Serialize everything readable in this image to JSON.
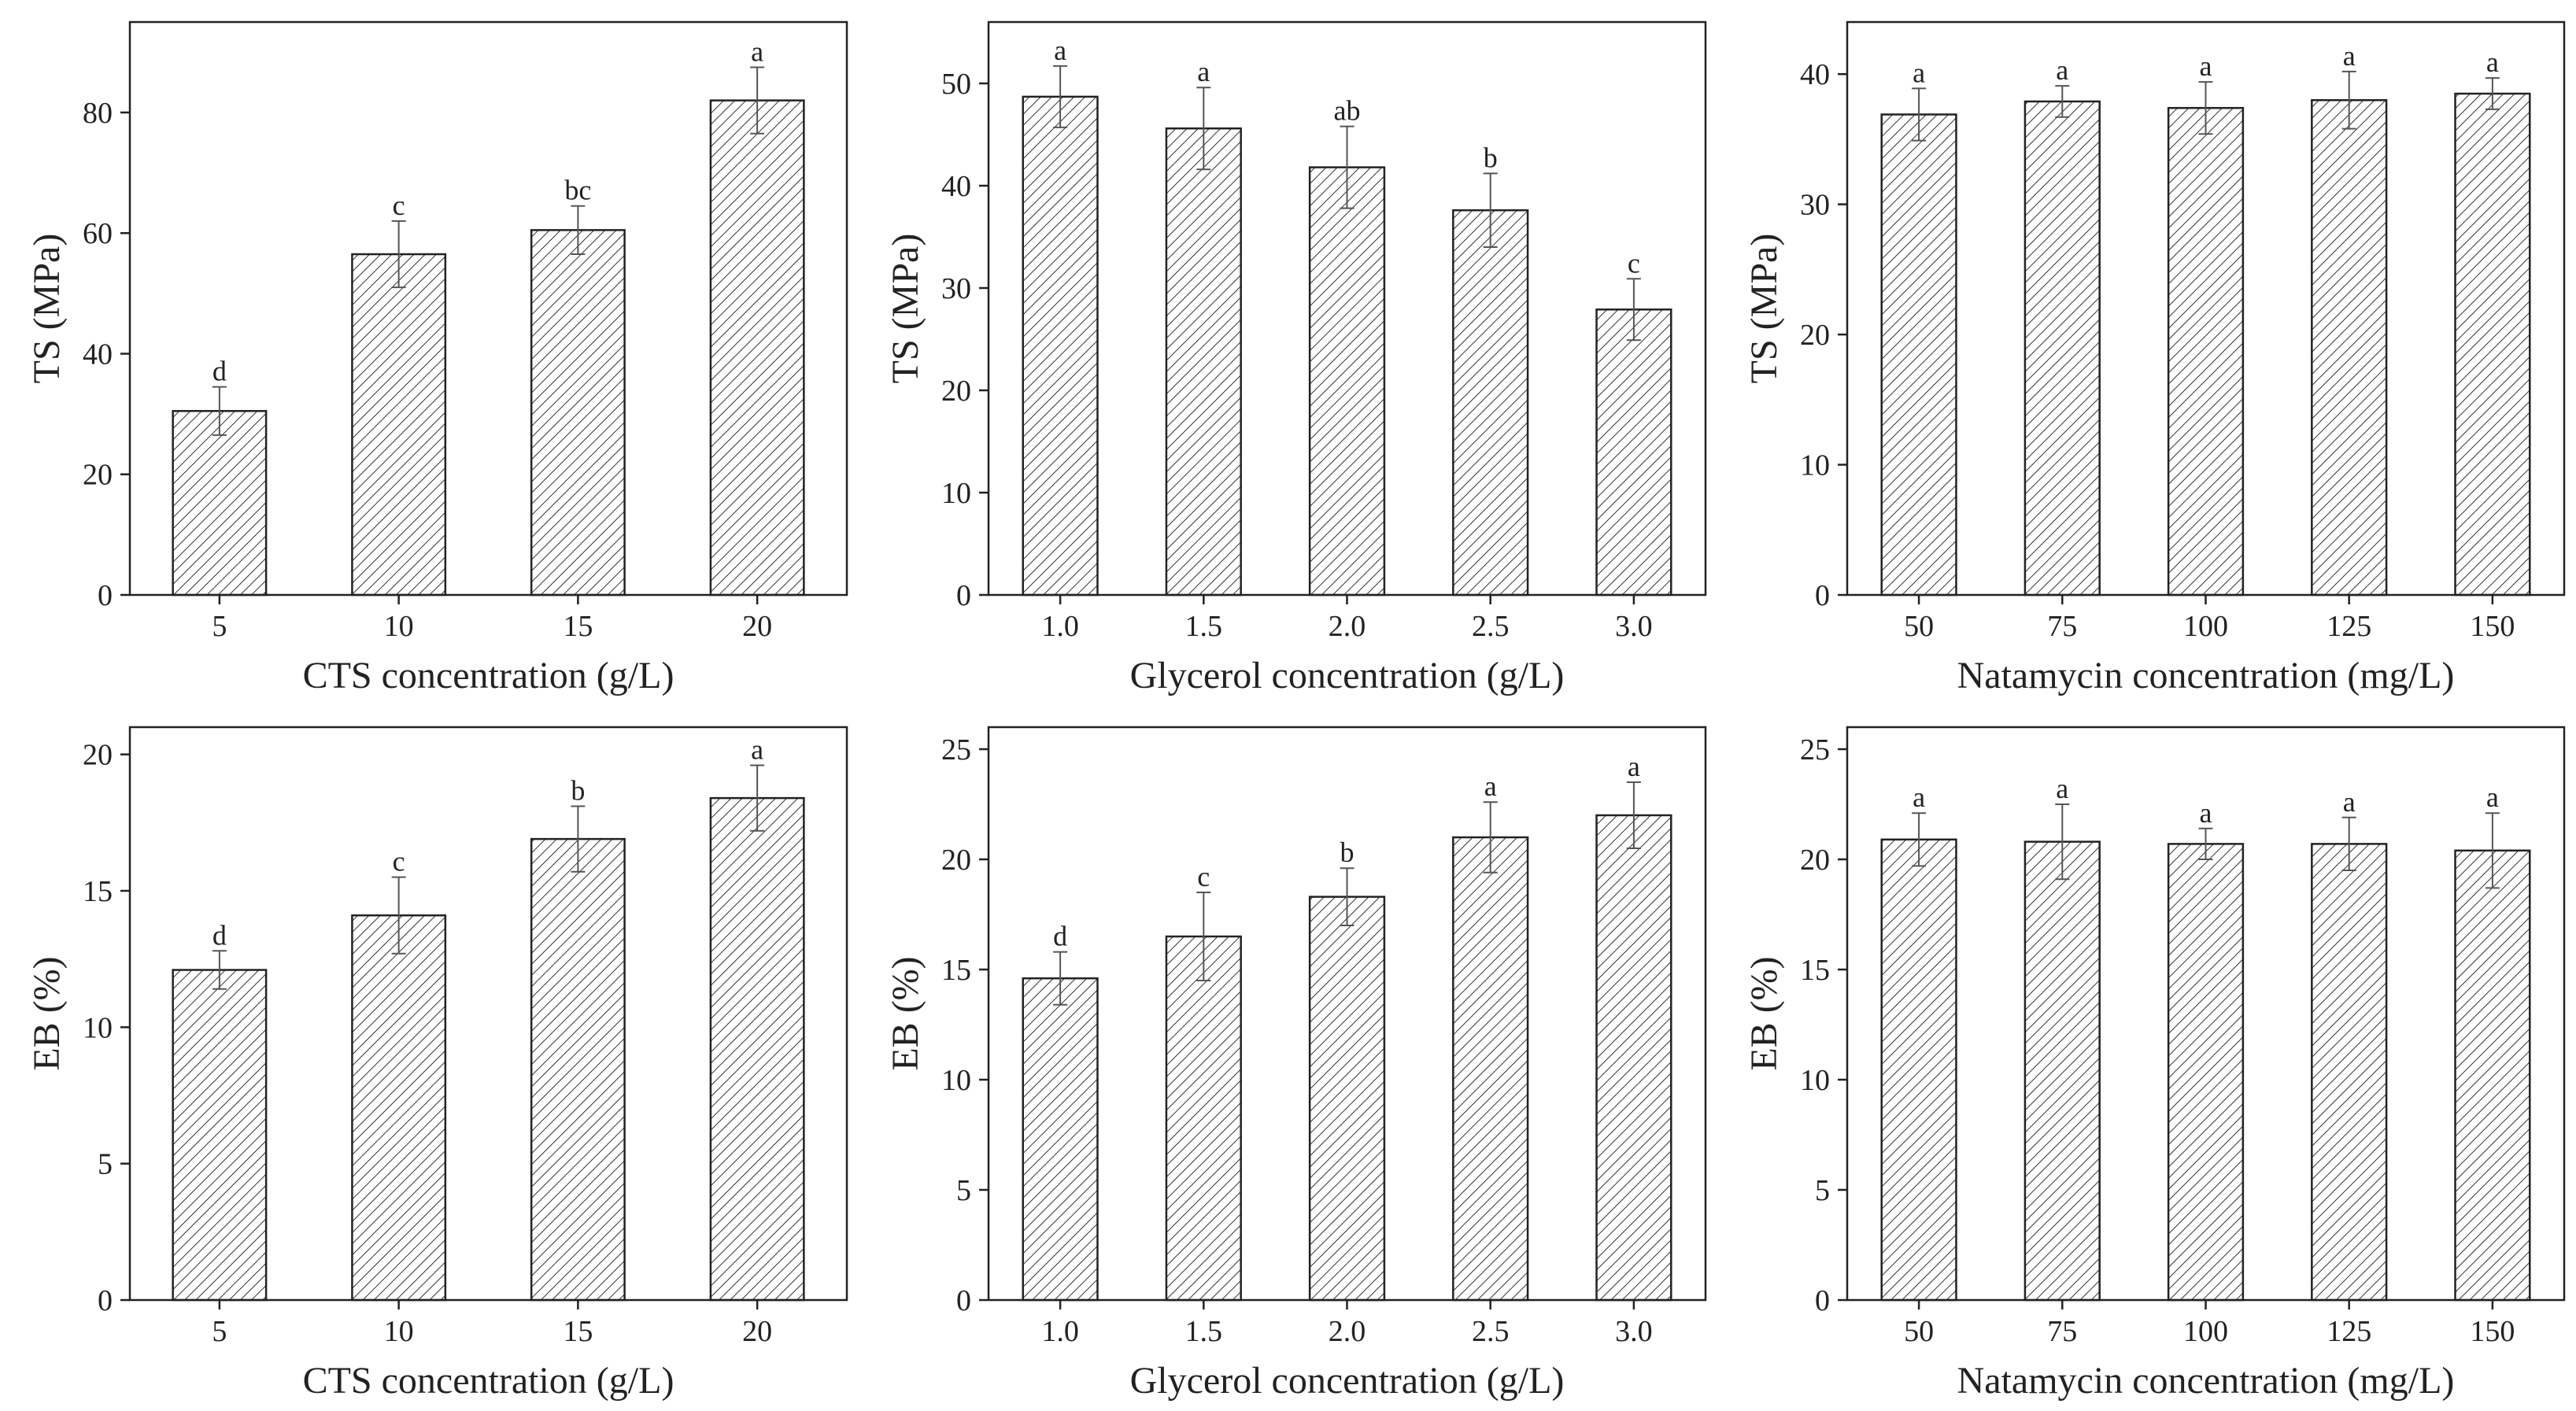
{
  "figure": {
    "colors": {
      "ink": "#222222",
      "hatch": "#333333",
      "error_bar": "#555555",
      "background": "#ffffff"
    }
  },
  "chart_data": [
    {
      "type": "bar",
      "title": "",
      "xlabel": "CTS concentration (g/L)",
      "ylabel": "TS (MPa)",
      "categories": [
        "5",
        "10",
        "15",
        "20"
      ],
      "values": [
        30.5,
        56.5,
        60.5,
        82
      ],
      "errors": [
        4,
        5.5,
        4,
        5.5
      ],
      "letters": [
        "d",
        "c",
        "bc",
        "a"
      ],
      "ylim": [
        0,
        95
      ],
      "yticks": [
        0,
        20,
        40,
        60,
        80
      ],
      "ytick_labels": [
        "0",
        "20",
        "40",
        "60",
        "80"
      ],
      "grid": false,
      "fill": "hatched"
    },
    {
      "type": "bar",
      "title": "",
      "xlabel": "Glycerol concentration (g/L)",
      "ylabel": "TS (MPa)",
      "categories": [
        "1.0",
        "1.5",
        "2.0",
        "2.5",
        "3.0"
      ],
      "values": [
        48.7,
        45.6,
        41.8,
        37.6,
        27.9
      ],
      "errors": [
        3,
        4,
        4,
        3.6,
        3
      ],
      "letters": [
        "a",
        "a",
        "ab",
        "b",
        "c"
      ],
      "ylim": [
        0,
        56
      ],
      "yticks": [
        0,
        10,
        20,
        30,
        40,
        50
      ],
      "ytick_labels": [
        "0",
        "10",
        "20",
        "30",
        "40",
        "50"
      ],
      "grid": false,
      "fill": "hatched"
    },
    {
      "type": "bar",
      "title": "",
      "xlabel": "Natamycin concentration (mg/L)",
      "ylabel": "TS (MPa)",
      "categories": [
        "50",
        "75",
        "100",
        "125",
        "150"
      ],
      "values": [
        36.9,
        37.9,
        37.4,
        38.0,
        38.5
      ],
      "errors": [
        2,
        1.2,
        2,
        2.2,
        1.2
      ],
      "letters": [
        "a",
        "a",
        "a",
        "a",
        "a"
      ],
      "ylim": [
        0,
        44
      ],
      "yticks": [
        0,
        10,
        20,
        30,
        40
      ],
      "ytick_labels": [
        "0",
        "10",
        "20",
        "30",
        "40"
      ],
      "grid": false,
      "fill": "hatched"
    },
    {
      "type": "bar",
      "title": "",
      "xlabel": "CTS concentration (g/L)",
      "ylabel": "EB (%)",
      "categories": [
        "5",
        "10",
        "15",
        "20"
      ],
      "values": [
        12.1,
        14.1,
        16.9,
        18.4
      ],
      "errors": [
        0.7,
        1.4,
        1.2,
        1.2
      ],
      "letters": [
        "d",
        "c",
        "b",
        "a"
      ],
      "ylim": [
        0,
        21
      ],
      "yticks": [
        0,
        5,
        10,
        15,
        20
      ],
      "ytick_labels": [
        "0",
        "5",
        "10",
        "15",
        "20"
      ],
      "grid": false,
      "fill": "hatched"
    },
    {
      "type": "bar",
      "title": "",
      "xlabel": "Glycerol concentration (g/L)",
      "ylabel": "EB (%)",
      "categories": [
        "1.0",
        "1.5",
        "2.0",
        "2.5",
        "3.0"
      ],
      "values": [
        14.6,
        16.5,
        18.3,
        21.0,
        22.0
      ],
      "errors": [
        1.2,
        2.0,
        1.3,
        1.6,
        1.5
      ],
      "letters": [
        "d",
        "c",
        "b",
        "a",
        "a"
      ],
      "ylim": [
        0,
        26
      ],
      "yticks": [
        0,
        5,
        10,
        15,
        20,
        25
      ],
      "ytick_labels": [
        "0",
        "5",
        "10",
        "15",
        "20",
        "25"
      ],
      "grid": false,
      "fill": "hatched"
    },
    {
      "type": "bar",
      "title": "",
      "xlabel": "Natamycin concentration (mg/L)",
      "ylabel": "EB (%)",
      "categories": [
        "50",
        "75",
        "100",
        "125",
        "150"
      ],
      "values": [
        20.9,
        20.8,
        20.7,
        20.7,
        20.4
      ],
      "errors": [
        1.2,
        1.7,
        0.7,
        1.2,
        1.7
      ],
      "letters": [
        "a",
        "a",
        "a",
        "a",
        "a"
      ],
      "ylim": [
        0,
        26
      ],
      "yticks": [
        0,
        5,
        10,
        15,
        20,
        25
      ],
      "ytick_labels": [
        "0",
        "5",
        "10",
        "15",
        "20",
        "25"
      ],
      "grid": false,
      "fill": "hatched"
    }
  ]
}
